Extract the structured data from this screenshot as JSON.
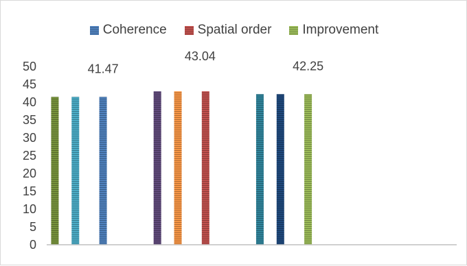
{
  "chart_data": {
    "type": "bar",
    "categories": [
      "",
      "",
      ""
    ],
    "series": [
      {
        "name": "Coherence",
        "values": [
          41.47,
          43.04,
          42.25
        ]
      },
      {
        "name": "Spatial order",
        "values": [
          41.47,
          43.04,
          42.25
        ]
      },
      {
        "name": "Improvement",
        "values": [
          41.47,
          43.04,
          42.25
        ]
      }
    ],
    "bar_colors": [
      [
        "#77933c",
        "#4bacc6",
        "#4f81bd"
      ],
      [
        "#604a7b",
        "#f79646",
        "#c0504d"
      ],
      [
        "#31859c",
        "#1f497d",
        "#9bbb59"
      ]
    ],
    "legend_colors": [
      "#4f81bd",
      "#c0504d",
      "#9bbb59"
    ],
    "data_labels": [
      "41.47",
      "43.04",
      "42.25"
    ],
    "title": "",
    "xlabel": "",
    "ylabel": "",
    "ylim": [
      0,
      50
    ],
    "yticks": [
      0,
      5,
      10,
      15,
      20,
      25,
      30,
      35,
      40,
      45,
      50
    ],
    "grid": false,
    "legend_position": "top",
    "empty_trailing_category": true
  }
}
